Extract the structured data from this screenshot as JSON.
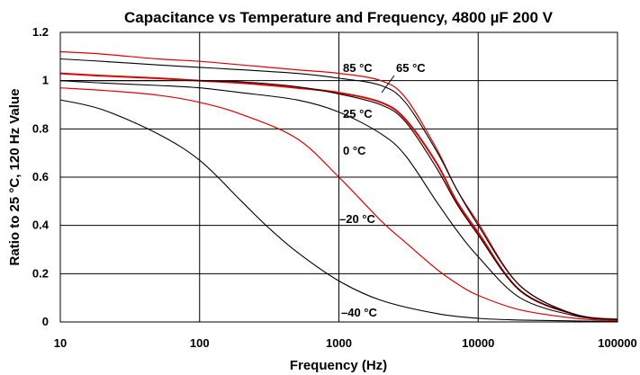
{
  "chart_data": {
    "type": "line",
    "title": "Capacitance vs Temperature and Frequency,  4800 µF  200 V",
    "xlabel": "Frequency (Hz)",
    "ylabel": "Ratio to 25  °C, 120 Hz Value",
    "x_scale": "log",
    "xlim": [
      10,
      100000
    ],
    "ylim": [
      0,
      1.2
    ],
    "x_ticks": [
      {
        "value": 10,
        "label": "10"
      },
      {
        "value": 100,
        "label": "100"
      },
      {
        "value": 1000,
        "label": "1000"
      },
      {
        "value": 10000,
        "label": "10000"
      },
      {
        "value": 100000,
        "label": "100000"
      }
    ],
    "y_ticks": [
      {
        "value": 0,
        "label": "0"
      },
      {
        "value": 0.2,
        "label": "0.2"
      },
      {
        "value": 0.4,
        "label": "0.4"
      },
      {
        "value": 0.6,
        "label": "0.6"
      },
      {
        "value": 0.8,
        "label": "0.8"
      },
      {
        "value": 1,
        "label": "1"
      },
      {
        "value": 1.2,
        "label": "1.2"
      }
    ],
    "grid": true,
    "series": [
      {
        "name": "85 °C",
        "color": "#e00000",
        "x": [
          10,
          20,
          50,
          100,
          200,
          500,
          1000,
          2000,
          3000,
          5000,
          7000,
          10000,
          20000,
          50000,
          100000
        ],
        "y": [
          1.12,
          1.11,
          1.09,
          1.08,
          1.065,
          1.045,
          1.03,
          1.0,
          0.93,
          0.72,
          0.55,
          0.41,
          0.15,
          0.03,
          0.01
        ]
      },
      {
        "name": "65 °C",
        "color": "#000000",
        "x": [
          10,
          20,
          50,
          100,
          200,
          500,
          1000,
          2000,
          3000,
          5000,
          7000,
          10000,
          20000,
          50000,
          100000
        ],
        "y": [
          1.09,
          1.08,
          1.065,
          1.055,
          1.045,
          1.03,
          1.01,
          0.98,
          0.91,
          0.71,
          0.55,
          0.4,
          0.15,
          0.03,
          0.01
        ]
      },
      {
        "name": "25 °C",
        "color": "#e00000",
        "x": [
          10,
          20,
          50,
          100,
          200,
          500,
          1000,
          2000,
          3000,
          5000,
          7000,
          10000,
          20000,
          50000,
          100000
        ],
        "y": [
          1.03,
          1.02,
          1.01,
          1.0,
          0.99,
          0.97,
          0.95,
          0.91,
          0.84,
          0.66,
          0.5,
          0.37,
          0.13,
          0.03,
          0.01
        ]
      },
      {
        "name": "",
        "color": "#000000",
        "x": [
          10,
          20,
          50,
          100,
          200,
          500,
          1000,
          2000,
          3000,
          5000,
          7000,
          10000,
          20000,
          50000,
          100000
        ],
        "y": [
          1.0,
          1.0,
          1.0,
          1.0,
          0.995,
          0.975,
          0.945,
          0.9,
          0.83,
          0.64,
          0.49,
          0.36,
          0.13,
          0.03,
          0.01
        ]
      },
      {
        "name": "0 °C",
        "color": "#000000",
        "x": [
          10,
          20,
          50,
          100,
          200,
          500,
          1000,
          2000,
          3000,
          5000,
          7000,
          10000,
          20000,
          50000,
          100000
        ],
        "y": [
          1.0,
          0.99,
          0.98,
          0.97,
          0.95,
          0.92,
          0.87,
          0.78,
          0.69,
          0.5,
          0.38,
          0.27,
          0.1,
          0.025,
          0.01
        ]
      },
      {
        "name": "–20 °C",
        "color": "#e00000",
        "x": [
          10,
          20,
          50,
          100,
          200,
          500,
          1000,
          2000,
          3000,
          5000,
          7000,
          10000,
          20000,
          50000,
          100000
        ],
        "y": [
          0.97,
          0.96,
          0.94,
          0.91,
          0.86,
          0.76,
          0.6,
          0.42,
          0.33,
          0.22,
          0.16,
          0.11,
          0.05,
          0.015,
          0.005
        ]
      },
      {
        "name": "–40 °C",
        "color": "#000000",
        "x": [
          10,
          20,
          50,
          100,
          200,
          300,
          500,
          1000,
          2000,
          5000,
          10000,
          20000,
          50000,
          100000
        ],
        "y": [
          0.92,
          0.88,
          0.78,
          0.67,
          0.5,
          0.4,
          0.29,
          0.17,
          0.09,
          0.035,
          0.015,
          0.008,
          0.004,
          0.002
        ]
      }
    ]
  }
}
